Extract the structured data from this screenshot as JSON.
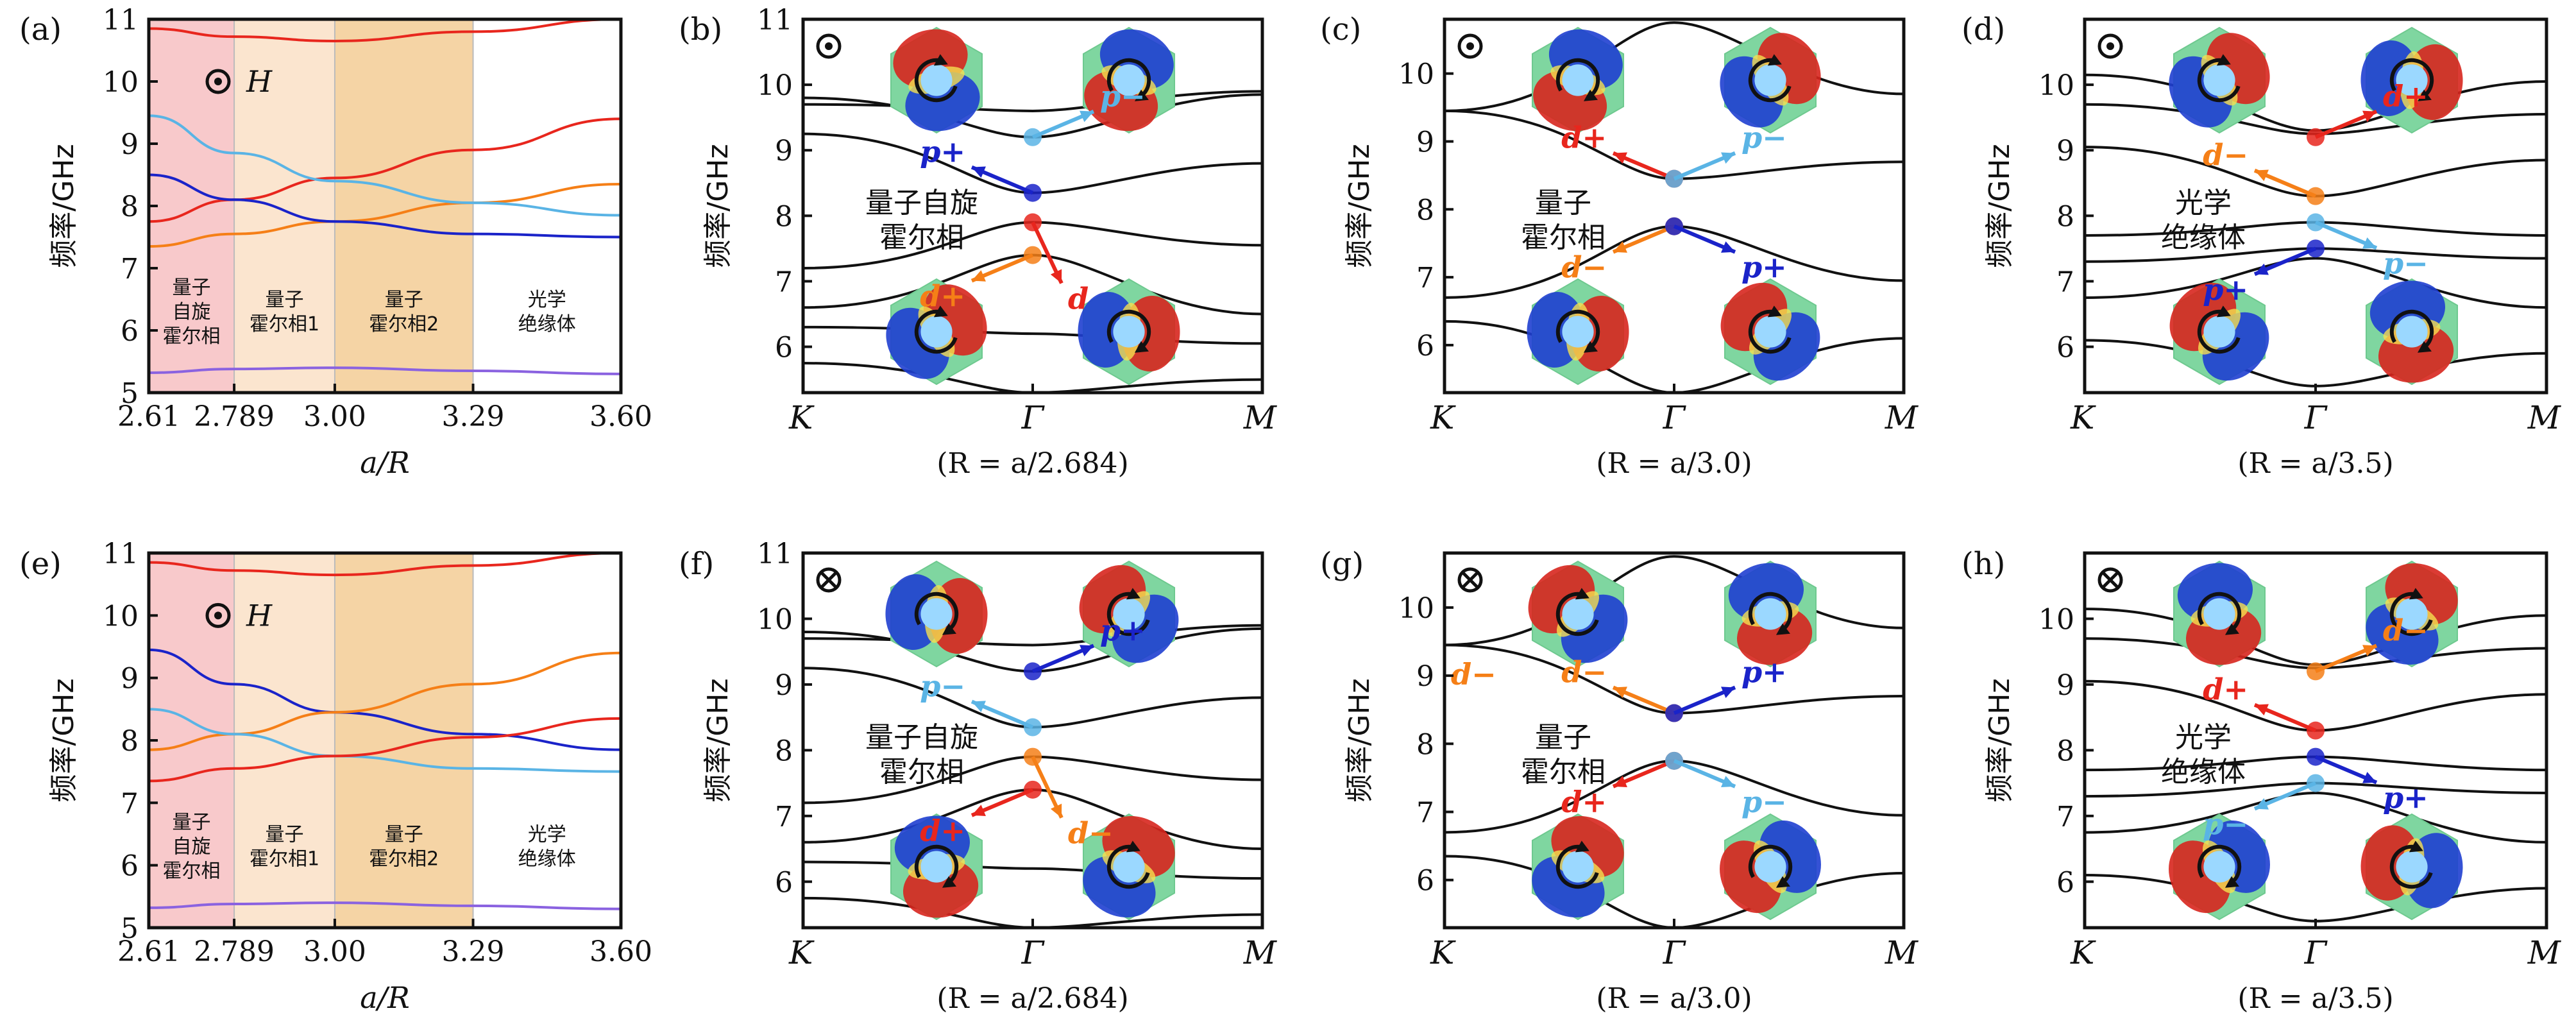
{
  "colors": {
    "red": "#e8261d",
    "orange": "#f57f17",
    "light_blue": "#5ab4e5",
    "blue": "#1a23c9",
    "purple": "#8a62e0",
    "region_pink": "#f8c9cb",
    "region_peach": "#fbe5cf",
    "region_orange": "#f5d4a5",
    "band": "#111111"
  },
  "chart_data": [
    {
      "panel": "(a)",
      "type": "line",
      "title_symbol": "⊙",
      "title_label": "H",
      "xlabel": "a/R",
      "ylabel": "频率/GHz",
      "xlim": [
        2.61,
        3.6
      ],
      "ylim": [
        5,
        11
      ],
      "xticks": [
        "2.61",
        "2.789",
        "3.00",
        "3.29",
        "3.60"
      ],
      "xtick_values": [
        2.61,
        2.789,
        3.0,
        3.29,
        3.6
      ],
      "yticks": [
        "5",
        "6",
        "7",
        "8",
        "9",
        "10",
        "11"
      ],
      "regions": [
        {
          "lines": [
            "量子",
            "自旋",
            "霍尔相"
          ],
          "range": [
            2.61,
            2.789
          ],
          "color": "region_pink"
        },
        {
          "lines": [
            "量子",
            "霍尔相1"
          ],
          "range": [
            2.789,
            3.0
          ],
          "color": "region_peach"
        },
        {
          "lines": [
            "量子",
            "霍尔相2"
          ],
          "range": [
            3.0,
            3.29
          ],
          "color": "region_orange"
        },
        {
          "lines": [
            "光学",
            "绝缘体"
          ],
          "range": [
            3.29,
            3.6
          ],
          "color": "white"
        }
      ],
      "x": [
        2.61,
        2.789,
        3.0,
        3.29,
        3.6
      ],
      "series": [
        {
          "name": "top",
          "color": "red",
          "values": [
            10.85,
            10.72,
            10.65,
            10.8,
            11.0
          ]
        },
        {
          "name": "red rising",
          "color": "red",
          "values": [
            7.75,
            8.1,
            8.45,
            8.9,
            9.4
          ]
        },
        {
          "name": "orange rising",
          "color": "orange",
          "values": [
            7.35,
            7.55,
            7.75,
            8.05,
            8.35
          ]
        },
        {
          "name": "light blue falling",
          "color": "light_blue",
          "values": [
            9.45,
            8.85,
            8.4,
            8.05,
            7.85
          ]
        },
        {
          "name": "blue falling",
          "color": "blue",
          "values": [
            8.5,
            8.1,
            7.75,
            7.55,
            7.5
          ]
        },
        {
          "name": "bottom",
          "color": "purple",
          "values": [
            5.32,
            5.38,
            5.4,
            5.35,
            5.3
          ]
        }
      ]
    },
    {
      "panel": "(e)",
      "type": "line",
      "title_symbol": "⊙",
      "title_label": "H",
      "xlabel": "a/R",
      "ylabel": "频率/GHz",
      "xlim": [
        2.61,
        3.6
      ],
      "ylim": [
        5,
        11
      ],
      "xticks": [
        "2.61",
        "2.789",
        "3.00",
        "3.29",
        "3.60"
      ],
      "xtick_values": [
        2.61,
        2.789,
        3.0,
        3.29,
        3.6
      ],
      "yticks": [
        "5",
        "6",
        "7",
        "8",
        "9",
        "10",
        "11"
      ],
      "regions": [
        {
          "lines": [
            "量子",
            "自旋",
            "霍尔相"
          ],
          "range": [
            2.61,
            2.789
          ],
          "color": "region_pink"
        },
        {
          "lines": [
            "量子",
            "霍尔相1"
          ],
          "range": [
            2.789,
            3.0
          ],
          "color": "region_peach"
        },
        {
          "lines": [
            "量子",
            "霍尔相2"
          ],
          "range": [
            3.0,
            3.29
          ],
          "color": "region_orange"
        },
        {
          "lines": [
            "光学",
            "绝缘体"
          ],
          "range": [
            3.29,
            3.6
          ],
          "color": "white"
        }
      ],
      "x": [
        2.61,
        2.789,
        3.0,
        3.29,
        3.6
      ],
      "series": [
        {
          "name": "top",
          "color": "red",
          "values": [
            10.85,
            10.72,
            10.65,
            10.8,
            11.0
          ]
        },
        {
          "name": "blue falling",
          "color": "blue",
          "values": [
            9.45,
            8.9,
            8.45,
            8.1,
            7.85
          ]
        },
        {
          "name": "orange rising",
          "color": "orange",
          "values": [
            7.85,
            8.1,
            8.45,
            8.9,
            9.4
          ]
        },
        {
          "name": "light blue falling",
          "color": "light_blue",
          "values": [
            8.5,
            8.1,
            7.75,
            7.55,
            7.5
          ]
        },
        {
          "name": "red rising",
          "color": "red",
          "values": [
            7.35,
            7.55,
            7.75,
            8.05,
            8.35
          ]
        },
        {
          "name": "bottom",
          "color": "purple",
          "values": [
            5.32,
            5.38,
            5.4,
            5.35,
            5.3
          ]
        }
      ]
    },
    {
      "panel": "(b)",
      "type": "line",
      "mag": "⊙",
      "xticks": [
        "K",
        "Γ",
        "M"
      ],
      "xlabel": "(R = a/2.684)",
      "ylabel": "频率/GHz",
      "ylim": [
        5.3,
        11
      ],
      "yticks": [
        "6",
        "7",
        "8",
        "9",
        "10",
        "11"
      ],
      "phase_lines": [
        "量子自旋",
        "霍尔相"
      ],
      "bands": [
        [
          9.8,
          9.2,
          9.85
        ],
        [
          9.7,
          9.6,
          9.9
        ],
        [
          9.25,
          8.35,
          8.8
        ],
        [
          7.2,
          7.9,
          7.55
        ],
        [
          6.6,
          7.4,
          6.5
        ],
        [
          6.3,
          6.2,
          6.05
        ],
        [
          5.75,
          5.3,
          5.5
        ]
      ],
      "points": [
        {
          "label": "p−",
          "y": 9.2,
          "color": "light_blue",
          "dir": "right"
        },
        {
          "label": "p+",
          "y": 8.35,
          "color": "blue",
          "dir": "left"
        },
        {
          "label": "d",
          "y": 7.9,
          "color": "red",
          "dir": "down"
        },
        {
          "label": "d+",
          "y": 7.4,
          "color": "orange",
          "dir": "left"
        }
      ]
    },
    {
      "panel": "(c)",
      "type": "line",
      "mag": "⊙",
      "xticks": [
        "K",
        "Γ",
        "M"
      ],
      "xlabel": "(R = a/3.0)",
      "ylabel": "频率/GHz",
      "ylim": [
        5.3,
        10.8
      ],
      "yticks": [
        "6",
        "7",
        "8",
        "9",
        "10"
      ],
      "phase_lines": [
        "量子",
        "霍尔相"
      ],
      "bands": [
        [
          9.45,
          10.75,
          9.7
        ],
        [
          9.45,
          8.45,
          8.7
        ],
        [
          6.7,
          7.75,
          6.95
        ],
        [
          6.35,
          5.3,
          6.1
        ]
      ],
      "points": [
        {
          "label": "d+",
          "y": 8.45,
          "color": "red",
          "dir": "left"
        },
        {
          "label": "p−",
          "y": 8.45,
          "color": "light_blue",
          "dir": "right"
        },
        {
          "label": "d−",
          "y": 7.75,
          "color": "orange",
          "dir": "left"
        },
        {
          "label": "p+",
          "y": 7.75,
          "color": "blue",
          "dir": "right"
        }
      ]
    },
    {
      "panel": "(d)",
      "type": "line",
      "mag": "⊙",
      "xticks": [
        "K",
        "Γ",
        "M"
      ],
      "xlabel": "(R = a/3.5)",
      "ylabel": "频率/GHz",
      "ylim": [
        5.3,
        11
      ],
      "yticks": [
        "6",
        "7",
        "8",
        "9",
        "10"
      ],
      "phase_lines": [
        "光学",
        "绝缘体"
      ],
      "bands": [
        [
          10.15,
          9.3,
          10.05
        ],
        [
          9.7,
          9.25,
          9.55
        ],
        [
          9.05,
          8.3,
          8.85
        ],
        [
          7.7,
          7.9,
          7.7
        ],
        [
          7.3,
          7.5,
          7.35
        ],
        [
          6.75,
          7.35,
          6.6
        ],
        [
          6.1,
          5.4,
          5.9
        ]
      ],
      "points": [
        {
          "label": "d+",
          "y": 9.2,
          "color": "red",
          "dir": "right"
        },
        {
          "label": "d−",
          "y": 8.3,
          "color": "orange",
          "dir": "left"
        },
        {
          "label": "p−",
          "y": 7.9,
          "color": "light_blue",
          "dir": "right"
        },
        {
          "label": "p+",
          "y": 7.5,
          "color": "blue",
          "dir": "left"
        }
      ]
    },
    {
      "panel": "(f)",
      "type": "line",
      "mag": "⊗",
      "xticks": [
        "K",
        "Γ",
        "M"
      ],
      "xlabel": "(R = a/2.684)",
      "ylabel": "频率/GHz",
      "ylim": [
        5.3,
        11
      ],
      "yticks": [
        "6",
        "7",
        "8",
        "9",
        "10",
        "11"
      ],
      "phase_lines": [
        "量子自旋",
        "霍尔相"
      ],
      "bands": [
        [
          9.8,
          9.2,
          9.85
        ],
        [
          9.7,
          9.6,
          9.9
        ],
        [
          9.25,
          8.35,
          8.8
        ],
        [
          7.2,
          7.9,
          7.55
        ],
        [
          6.6,
          7.4,
          6.5
        ],
        [
          6.3,
          6.2,
          6.05
        ],
        [
          5.75,
          5.3,
          5.5
        ]
      ],
      "points": [
        {
          "label": "p+",
          "y": 9.2,
          "color": "blue",
          "dir": "right"
        },
        {
          "label": "p−",
          "y": 8.35,
          "color": "light_blue",
          "dir": "left"
        },
        {
          "label": "d−",
          "y": 7.9,
          "color": "orange",
          "dir": "down"
        },
        {
          "label": "d+",
          "y": 7.4,
          "color": "red",
          "dir": "left"
        }
      ]
    },
    {
      "panel": "(g)",
      "type": "line",
      "mag": "⊗",
      "xticks": [
        "K",
        "Γ",
        "M"
      ],
      "xlabel": "(R = a/3.0)",
      "ylabel": "频率/GHz",
      "ylim": [
        5.3,
        10.8
      ],
      "yticks": [
        "6",
        "7",
        "8",
        "9",
        "10"
      ],
      "phase_lines": [
        "量子",
        "霍尔相"
      ],
      "extra_label": "d−",
      "bands": [
        [
          9.45,
          10.75,
          9.7
        ],
        [
          9.45,
          8.45,
          8.7
        ],
        [
          6.7,
          7.75,
          6.95
        ],
        [
          6.35,
          5.3,
          6.1
        ]
      ],
      "points": [
        {
          "label": "d−",
          "y": 8.45,
          "color": "orange",
          "dir": "left"
        },
        {
          "label": "p+",
          "y": 8.45,
          "color": "blue",
          "dir": "right"
        },
        {
          "label": "d+",
          "y": 7.75,
          "color": "red",
          "dir": "left"
        },
        {
          "label": "p−",
          "y": 7.75,
          "color": "light_blue",
          "dir": "right"
        }
      ]
    },
    {
      "panel": "(h)",
      "type": "line",
      "mag": "⊗",
      "xticks": [
        "K",
        "Γ",
        "M"
      ],
      "xlabel": "(R = a/3.5)",
      "ylabel": "频率/GHz",
      "ylim": [
        5.3,
        11
      ],
      "yticks": [
        "6",
        "7",
        "8",
        "9",
        "10"
      ],
      "phase_lines": [
        "光学",
        "绝缘体"
      ],
      "bands": [
        [
          10.15,
          9.3,
          10.05
        ],
        [
          9.7,
          9.25,
          9.55
        ],
        [
          9.05,
          8.3,
          8.85
        ],
        [
          7.7,
          7.9,
          7.7
        ],
        [
          7.3,
          7.5,
          7.35
        ],
        [
          6.75,
          7.35,
          6.6
        ],
        [
          6.1,
          5.4,
          5.9
        ]
      ],
      "points": [
        {
          "label": "d−",
          "y": 9.2,
          "color": "orange",
          "dir": "right"
        },
        {
          "label": "d+",
          "y": 8.3,
          "color": "red",
          "dir": "left"
        },
        {
          "label": "p+",
          "y": 7.9,
          "color": "blue",
          "dir": "right"
        },
        {
          "label": "p−",
          "y": 7.5,
          "color": "light_blue",
          "dir": "left"
        }
      ]
    }
  ]
}
